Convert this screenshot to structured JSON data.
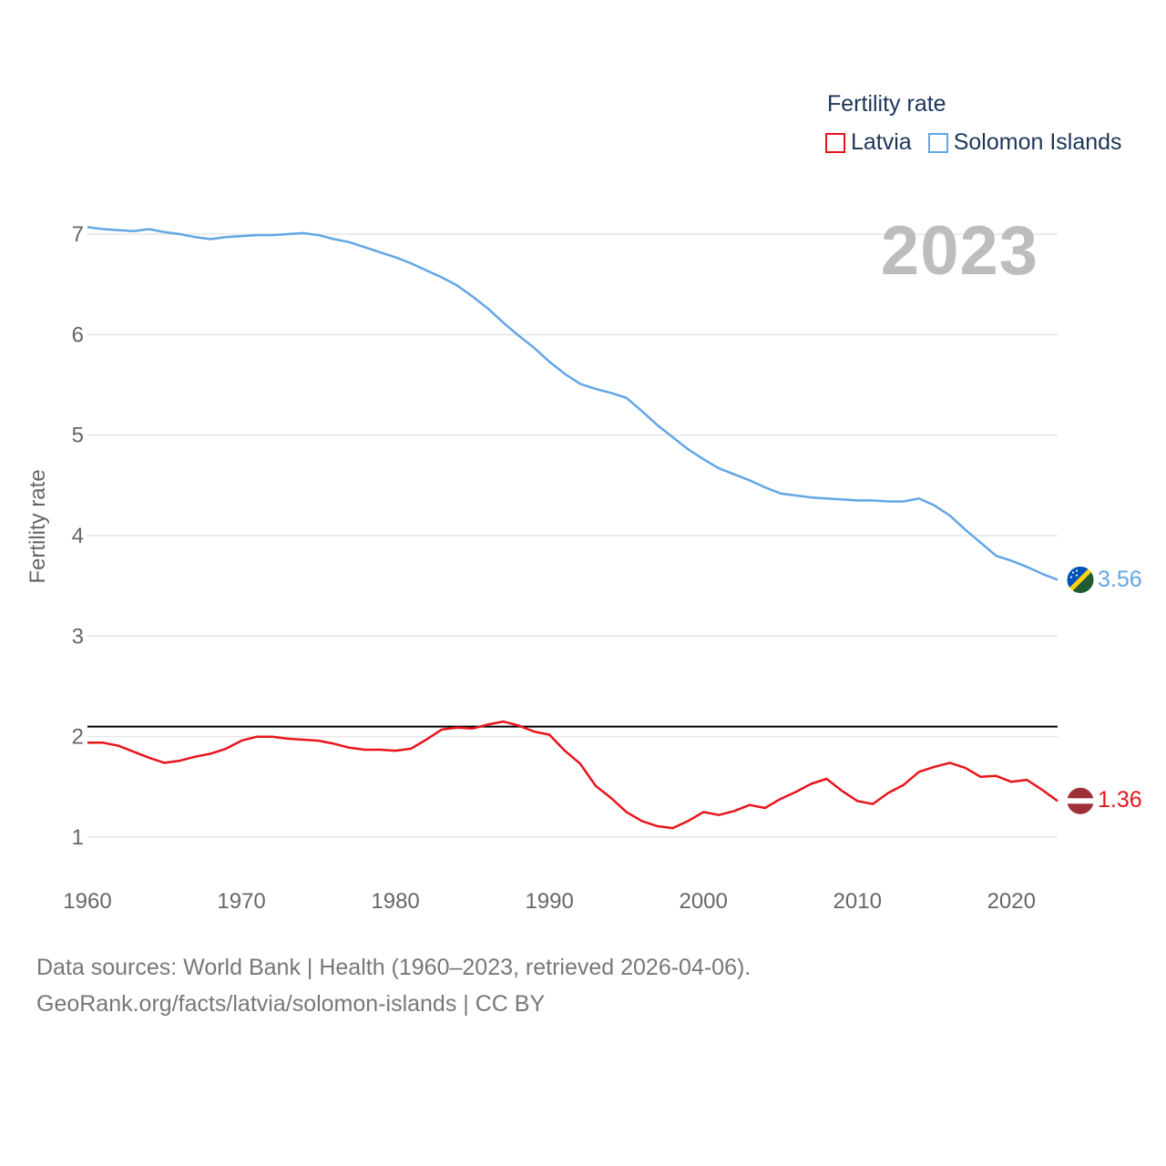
{
  "legend": {
    "title": "Fertility rate",
    "items": [
      {
        "label": "Latvia",
        "color": "#e8141b"
      },
      {
        "label": "Solomon Islands",
        "color": "#62a6e6"
      }
    ]
  },
  "year_display": "2023",
  "footer": {
    "line1": "Data sources: World Bank | Health (1960–2023, retrieved 2026-04-06).",
    "line2": "GeoRank.org/facts/latvia/solomon-islands | CC BY"
  },
  "chart_data": {
    "type": "line",
    "title": "Fertility rate",
    "xlabel": "",
    "ylabel": "Fertility rate",
    "xlim": [
      1960,
      2023
    ],
    "ylim": [
      0.6,
      7.4
    ],
    "xticks": [
      "1960",
      "1970",
      "1980",
      "1990",
      "2000",
      "2010",
      "2020"
    ],
    "yticks": [
      "1",
      "2",
      "3",
      "4",
      "5",
      "6",
      "7"
    ],
    "grid": true,
    "reference_line": 2.1,
    "x": [
      1960,
      1961,
      1962,
      1963,
      1964,
      1965,
      1966,
      1967,
      1968,
      1969,
      1970,
      1971,
      1972,
      1973,
      1974,
      1975,
      1976,
      1977,
      1978,
      1979,
      1980,
      1981,
      1982,
      1983,
      1984,
      1985,
      1986,
      1987,
      1988,
      1989,
      1990,
      1991,
      1992,
      1993,
      1994,
      1995,
      1996,
      1997,
      1998,
      1999,
      2000,
      2001,
      2002,
      2003,
      2004,
      2005,
      2006,
      2007,
      2008,
      2009,
      2010,
      2011,
      2012,
      2013,
      2014,
      2015,
      2016,
      2017,
      2018,
      2019,
      2020,
      2021,
      2022,
      2023
    ],
    "series": [
      {
        "name": "Latvia",
        "color": "#e8141b",
        "end_label": "1.36",
        "values": [
          1.94,
          1.94,
          1.91,
          1.85,
          1.79,
          1.74,
          1.76,
          1.8,
          1.83,
          1.88,
          1.96,
          2.0,
          2.0,
          1.98,
          1.97,
          1.96,
          1.93,
          1.89,
          1.87,
          1.87,
          1.86,
          1.88,
          1.97,
          2.07,
          2.09,
          2.08,
          2.12,
          2.15,
          2.11,
          2.05,
          2.02,
          1.86,
          1.73,
          1.51,
          1.39,
          1.25,
          1.16,
          1.11,
          1.09,
          1.16,
          1.25,
          1.22,
          1.26,
          1.32,
          1.29,
          1.38,
          1.45,
          1.53,
          1.58,
          1.46,
          1.36,
          1.33,
          1.44,
          1.52,
          1.65,
          1.7,
          1.74,
          1.69,
          1.6,
          1.61,
          1.55,
          1.57,
          1.47,
          1.36
        ]
      },
      {
        "name": "Solomon Islands",
        "color": "#62a6e6",
        "end_label": "3.56",
        "values": [
          7.07,
          7.05,
          7.04,
          7.03,
          7.05,
          7.02,
          7.0,
          6.97,
          6.95,
          6.97,
          6.98,
          6.99,
          6.99,
          7.0,
          7.01,
          6.99,
          6.95,
          6.92,
          6.87,
          6.82,
          6.77,
          6.71,
          6.64,
          6.57,
          6.49,
          6.38,
          6.26,
          6.12,
          5.99,
          5.87,
          5.73,
          5.61,
          5.51,
          5.46,
          5.42,
          5.37,
          5.24,
          5.1,
          4.98,
          4.86,
          4.76,
          4.67,
          4.61,
          4.55,
          4.48,
          4.42,
          4.4,
          4.38,
          4.37,
          4.36,
          4.35,
          4.35,
          4.34,
          4.34,
          4.37,
          4.3,
          4.2,
          4.06,
          3.93,
          3.8,
          3.75,
          3.69,
          3.62,
          3.56
        ]
      }
    ]
  }
}
